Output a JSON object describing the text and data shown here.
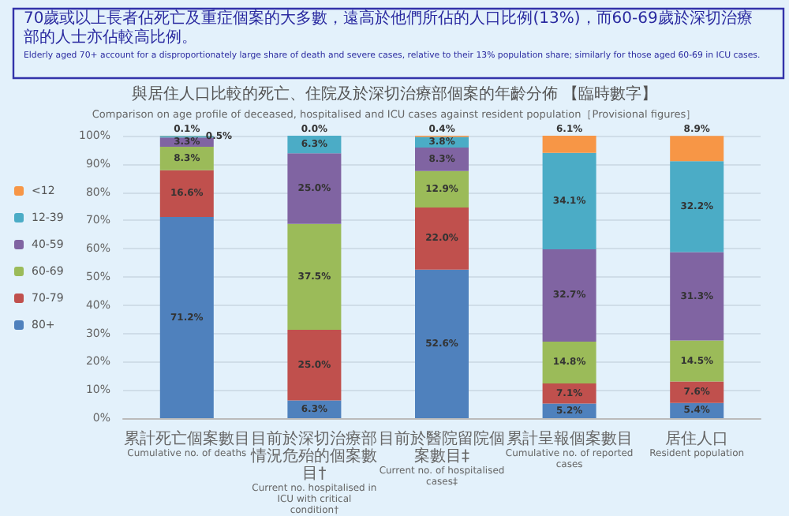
{
  "chart_data": {
    "type": "bar",
    "stacked": true,
    "title": "與居住人口比較的死亡、住院及於深切治療部個案的年齡分佈 【臨時數字】",
    "subtitle": "Comparison on age profile of deceased, hospitalised and ICU cases against resident population［Provisional figures］",
    "annotations": [
      "70歲或以上長者佔死亡及重症個案的大多數，遠高於他們所佔的人口比例(13%)，而60-69歲於深切治療部的人士亦佔較高比例。",
      "Elderly aged 70+ account for a disproportionately large share of death and severe cases, relative to their 13% population share; similarly for those aged 60-69 in ICU cases."
    ],
    "categories": [
      "累計死亡個案數目\nCumulative no. of deaths",
      "目前於深切治療部情況危殆的個案數目†\nCurrent no. hospitalised in ICU with critical condition†",
      "目前於醫院留院個案數目‡\nCurrent no. of hospitalised cases‡",
      "累計呈報個案數目\nCumulative no. of reported cases",
      "居住人口\nResident population"
    ],
    "series": [
      {
        "name": "80+",
        "color": "#4f81bd",
        "values": [
          71.2,
          6.3,
          52.6,
          5.2,
          5.4
        ],
        "value_labels": [
          "71.2%",
          "6.3%",
          "52.6%",
          "5.2%",
          "5.4%"
        ]
      },
      {
        "name": "70-79",
        "color": "#c0504d",
        "values": [
          16.6,
          25.0,
          22.0,
          7.1,
          7.6
        ],
        "value_labels": [
          "16.6%",
          "25.0%",
          "22.0%",
          "7.1%",
          "7.6%"
        ]
      },
      {
        "name": "60-69",
        "color": "#9bbb59",
        "values": [
          8.3,
          37.5,
          12.9,
          14.8,
          14.5
        ],
        "value_labels": [
          "8.3%",
          "37.5%",
          "12.9%",
          "14.8%",
          "14.5%"
        ]
      },
      {
        "name": "40-59",
        "color": "#8064a2",
        "values": [
          3.3,
          25.0,
          8.3,
          32.7,
          31.3
        ],
        "value_labels": [
          "3.3%",
          "25.0%",
          "8.3%",
          "32.7%",
          "31.3%"
        ]
      },
      {
        "name": "12-39",
        "color": "#4bacc6",
        "values": [
          0.5,
          6.3,
          3.8,
          34.1,
          32.2
        ],
        "value_labels": [
          "0.5%",
          "6.3%",
          "3.8%",
          "34.1%",
          "32.2%"
        ]
      },
      {
        "name": "<12",
        "color": "#f79646",
        "values": [
          0.1,
          0.0,
          0.4,
          6.1,
          8.9
        ],
        "value_labels": [
          "0.1%",
          "0.0%",
          "0.4%",
          "6.1%",
          "8.9%"
        ]
      }
    ],
    "ylim": [
      0,
      100
    ],
    "yticks": [
      {
        "value": 0,
        "label": "0%"
      },
      {
        "value": 10,
        "label": "10%"
      },
      {
        "value": 20,
        "label": "20%"
      },
      {
        "value": 30,
        "label": "30%"
      },
      {
        "value": 40,
        "label": "40%"
      },
      {
        "value": 50,
        "label": "50%"
      },
      {
        "value": 60,
        "label": "60%"
      },
      {
        "value": 70,
        "label": "70%"
      },
      {
        "value": 80,
        "label": "80%"
      },
      {
        "value": 90,
        "label": "90%"
      },
      {
        "value": 100,
        "label": "100%"
      }
    ],
    "grid": "y",
    "legend": "left"
  }
}
